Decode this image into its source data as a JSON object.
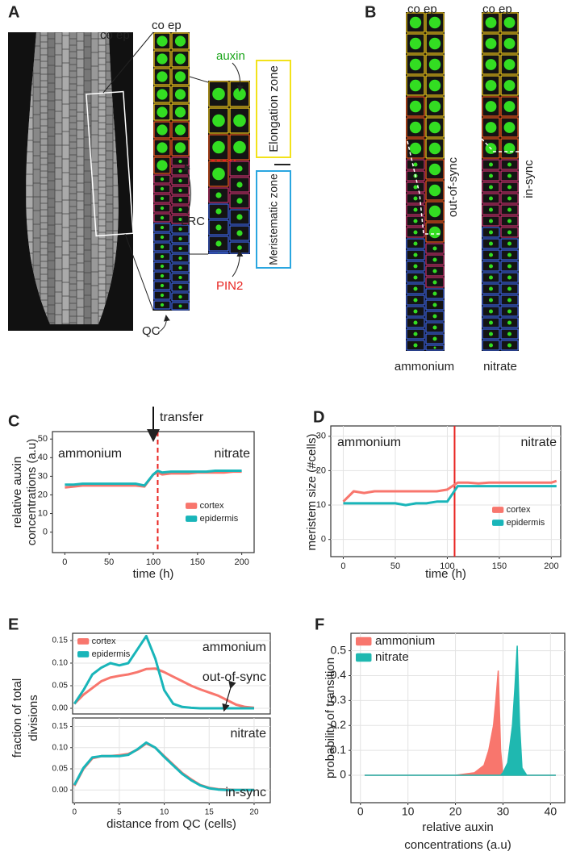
{
  "panel_labels": [
    "A",
    "B",
    "C",
    "D",
    "E",
    "F"
  ],
  "panel_A": {
    "co_ep_root": "co ep",
    "co_ep_zoom": "co ep",
    "auxin": "auxin",
    "elongation_zone": "Elongation zone",
    "meristematic_zone": "Meristematic zone",
    "lrc": "LRC",
    "pin2": "PIN2",
    "qc": "QC"
  },
  "panel_B": {
    "co_ep_left": "co ep",
    "co_ep_right": "co ep",
    "out_of_sync": "out-of-sync",
    "in_sync": "in-sync",
    "ammonium": "ammonium",
    "nitrate": "nitrate"
  },
  "chart_data": [
    {
      "type": "line",
      "ylabel": [
        "relative auxin",
        "concentrations (a.u)"
      ],
      "xlabel": "time (h)",
      "annotations": [
        "ammonium",
        "nitrate",
        "transfer"
      ],
      "x": [
        0,
        10,
        20,
        30,
        40,
        50,
        60,
        70,
        80,
        90,
        100,
        105,
        110,
        120,
        130,
        140,
        150,
        160,
        170,
        180,
        190,
        200
      ],
      "series": [
        {
          "name": "cortex",
          "color": "#f8766d",
          "values": [
            24,
            24.5,
            25,
            25,
            25,
            25,
            25,
            25,
            25,
            24.5,
            31,
            32,
            31,
            31.5,
            31.5,
            31.5,
            32,
            32,
            32,
            32,
            32.5,
            32.5
          ]
        },
        {
          "name": "epidermis",
          "color": "#19b5b9",
          "values": [
            25.5,
            25.5,
            26,
            26,
            26,
            26,
            26,
            26,
            26,
            25,
            31,
            33,
            32,
            32.5,
            32.5,
            32.5,
            32.5,
            32.5,
            33,
            33,
            33,
            33
          ]
        }
      ],
      "xlim": [
        -14,
        214
      ],
      "ylim": [
        -11,
        54
      ],
      "xticks": [
        0,
        50,
        100,
        150,
        200
      ],
      "yticks": [
        0,
        10,
        20,
        30,
        40,
        50
      ],
      "grid": false,
      "legend": "lower right",
      "vline": 105,
      "vline_style": "dashed",
      "vline_color": "#e8231f"
    },
    {
      "type": "line",
      "ylabel": "meristem size (#cells)",
      "xlabel": "time (h)",
      "annotations": [
        "ammonium",
        "nitrate"
      ],
      "x": [
        0,
        10,
        20,
        30,
        40,
        50,
        60,
        70,
        80,
        90,
        100,
        110,
        120,
        130,
        140,
        150,
        160,
        170,
        180,
        190,
        200,
        205
      ],
      "series": [
        {
          "name": "cortex",
          "color": "#f8766d",
          "values": [
            11,
            14,
            13.5,
            14,
            14,
            14,
            14,
            14,
            14,
            14,
            14.5,
            16.5,
            16.5,
            16.3,
            16.5,
            16.5,
            16.5,
            16.5,
            16.5,
            16.5,
            16.5,
            17
          ]
        },
        {
          "name": "epidermis",
          "color": "#19b5b9",
          "values": [
            10.5,
            10.5,
            10.5,
            10.5,
            10.5,
            10.5,
            10,
            10.5,
            10.5,
            11,
            11,
            15.5,
            15.5,
            15.5,
            15.5,
            15.5,
            15.5,
            15.5,
            15.5,
            15.5,
            15.5,
            15.5
          ]
        }
      ],
      "xlim": [
        -12,
        209
      ],
      "ylim": [
        -5,
        33
      ],
      "xticks": [
        0,
        50,
        100,
        150,
        200
      ],
      "yticks": [
        0,
        10,
        20,
        30
      ],
      "grid": true,
      "legend": "lower right",
      "vline": 107,
      "vline_style": "solid",
      "vline_color": "#e8231f"
    },
    {
      "type": "line",
      "ylabel": [
        "fraction of total",
        "divisions"
      ],
      "annotations": [
        "ammonium",
        "out-of-sync"
      ],
      "x": [
        0,
        1,
        2,
        3,
        4,
        5,
        6,
        7,
        8,
        9,
        10,
        11,
        12,
        13,
        14,
        15,
        16,
        17,
        18,
        19,
        20
      ],
      "series": [
        {
          "name": "cortex",
          "color": "#f8766d",
          "values": [
            0.01,
            0.03,
            0.045,
            0.06,
            0.068,
            0.072,
            0.075,
            0.08,
            0.087,
            0.088,
            0.08,
            0.07,
            0.06,
            0.05,
            0.042,
            0.035,
            0.028,
            0.018,
            0.008,
            0.003,
            0.001
          ]
        },
        {
          "name": "epidermis",
          "color": "#19b5b9",
          "values": [
            0.01,
            0.04,
            0.075,
            0.09,
            0.1,
            0.095,
            0.1,
            0.13,
            0.16,
            0.11,
            0.04,
            0.01,
            0.003,
            0.001,
            0,
            0,
            0,
            0,
            0,
            0,
            0
          ]
        }
      ],
      "xlim": [
        -0.2,
        21.8
      ],
      "ylim": [
        -0.0125,
        0.166
      ],
      "yticks": [
        {
          "value": 0,
          "label": "0.00"
        },
        0.05,
        {
          "value": 0.1,
          "label": "0.10"
        },
        0.15
      ],
      "grid": true,
      "legend": "upper left"
    },
    {
      "type": "line",
      "xlabel": "distance from QC (cells)",
      "annotations": [
        "nitrate",
        "in-sync"
      ],
      "x": [
        0,
        1,
        2,
        3,
        4,
        5,
        6,
        7,
        8,
        9,
        10,
        11,
        12,
        13,
        14,
        15,
        16,
        17,
        18,
        19,
        20
      ],
      "series": [
        {
          "color": "#f8766d",
          "values": [
            0.01,
            0.05,
            0.075,
            0.08,
            0.08,
            0.082,
            0.085,
            0.095,
            0.11,
            0.1,
            0.08,
            0.06,
            0.04,
            0.025,
            0.012,
            0.005,
            0.002,
            0.001,
            0,
            0,
            0
          ]
        },
        {
          "color": "#19b5b9",
          "values": [
            0.012,
            0.052,
            0.077,
            0.08,
            0.08,
            0.08,
            0.083,
            0.096,
            0.112,
            0.1,
            0.078,
            0.058,
            0.038,
            0.023,
            0.011,
            0.004,
            0.001,
            0,
            0,
            0,
            0
          ]
        }
      ],
      "xlim": [
        -0.2,
        21.8
      ],
      "ylim": [
        -0.03,
        0.17
      ],
      "xticks": [
        0,
        5,
        10,
        15,
        20
      ],
      "yticks": [
        {
          "value": 0,
          "label": "0.00"
        },
        0.05,
        {
          "value": 0.1,
          "label": "0.10"
        },
        0.15
      ],
      "grid": true
    },
    {
      "type": "area",
      "ylabel": "probability of transition",
      "xlabel": [
        "relative auxin",
        "concentrations (a.u)"
      ],
      "x": [
        1,
        20,
        24,
        26,
        27,
        28,
        28.5,
        29,
        29.5,
        30,
        31,
        32,
        32.5,
        33,
        33.5,
        34,
        35,
        41
      ],
      "series": [
        {
          "name": "ammonium",
          "color": "#f8766d",
          "values": [
            0,
            0,
            0.01,
            0.04,
            0.1,
            0.2,
            0.3,
            0.42,
            0.1,
            0,
            0,
            0,
            0,
            0,
            0,
            0,
            0,
            0
          ]
        },
        {
          "name": "nitrate",
          "color": "#1fb8b0",
          "values": [
            0,
            0,
            0,
            0,
            0,
            0,
            0,
            0,
            0,
            0.01,
            0.05,
            0.2,
            0.35,
            0.52,
            0.2,
            0.03,
            0,
            0
          ]
        }
      ],
      "xlim": [
        -2,
        43
      ],
      "ylim": [
        -0.11,
        0.57
      ],
      "xticks": [
        0,
        10,
        20,
        30,
        40
      ],
      "yticks": [
        0,
        0.1,
        0.2,
        0.3,
        0.4,
        0.5
      ],
      "grid": true,
      "legend": "upper left"
    }
  ]
}
